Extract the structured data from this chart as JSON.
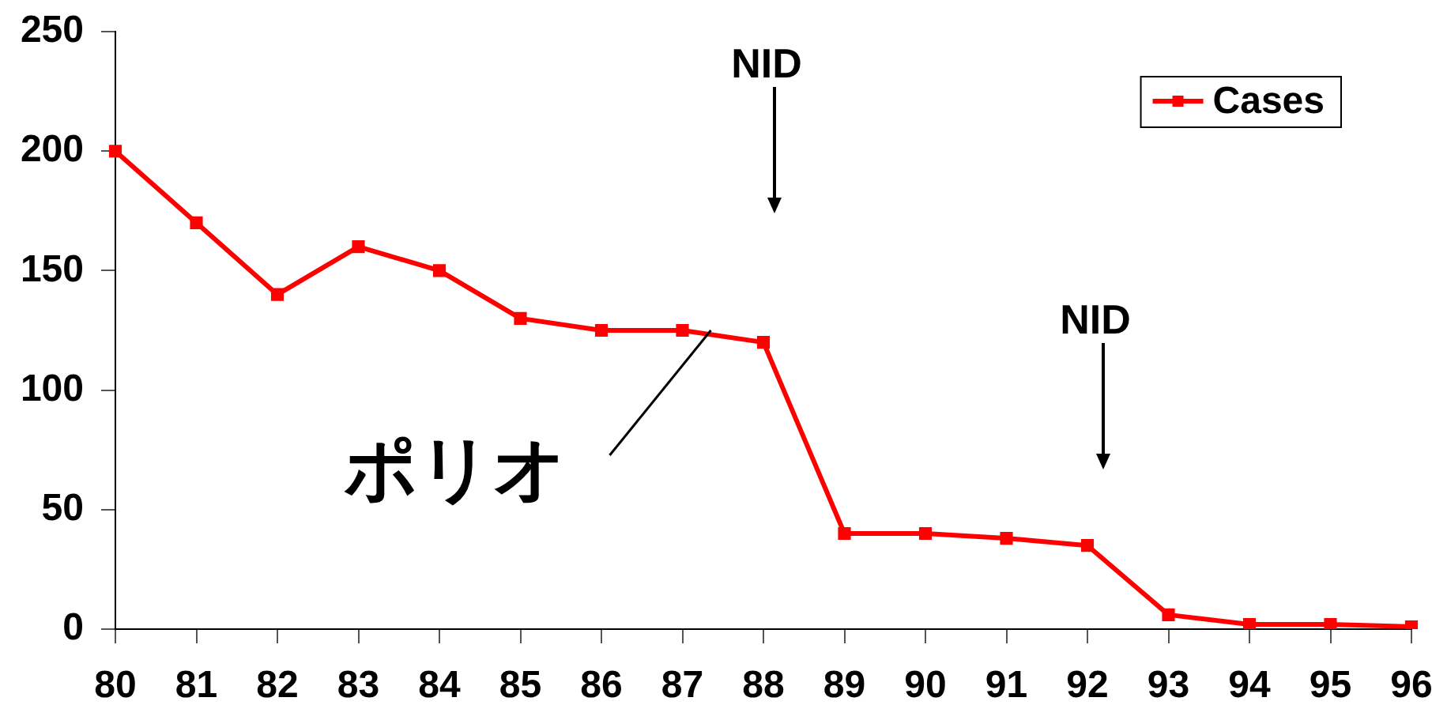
{
  "chart_data": {
    "type": "line",
    "categories": [
      "80",
      "81",
      "82",
      "83",
      "84",
      "85",
      "86",
      "87",
      "88",
      "89",
      "90",
      "91",
      "92",
      "93",
      "94",
      "95",
      "96"
    ],
    "series": [
      {
        "name": "Cases",
        "color": "#ff0000",
        "values": [
          200,
          170,
          140,
          160,
          150,
          130,
          125,
          125,
          120,
          40,
          40,
          38,
          35,
          6,
          2,
          2,
          1
        ]
      }
    ],
    "ylim": [
      0,
      250
    ],
    "yticks": [
      0,
      50,
      100,
      150,
      200,
      250
    ],
    "grid": false,
    "legend": "top right",
    "marker": "square",
    "line_style": "solid",
    "annotations": [
      "NID",
      "NID",
      {
        "text": "ポリオ",
        "x": "87",
        "y": 125
      }
    ]
  }
}
